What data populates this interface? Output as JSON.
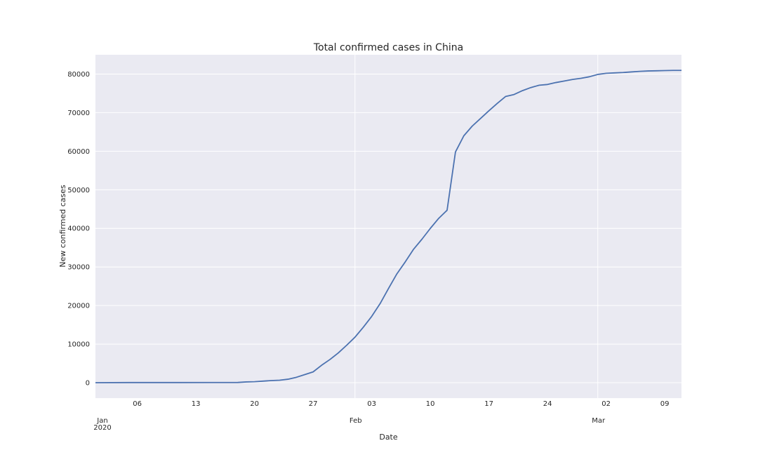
{
  "chart_data": {
    "type": "line",
    "title": "Total confirmed cases in China",
    "xlabel": "Date",
    "ylabel": "New confirmed cases",
    "x_start": "2020-01-01",
    "x_end": "2020-03-11",
    "ylim": [
      -4000,
      85000
    ],
    "grid": true,
    "y_ticks": [
      {
        "value": 0,
        "label": "0"
      },
      {
        "value": 10000,
        "label": "10000"
      },
      {
        "value": 20000,
        "label": "20000"
      },
      {
        "value": 30000,
        "label": "30000"
      },
      {
        "value": 40000,
        "label": "40000"
      },
      {
        "value": 50000,
        "label": "50000"
      },
      {
        "value": 60000,
        "label": "60000"
      },
      {
        "value": 70000,
        "label": "70000"
      },
      {
        "value": 80000,
        "label": "80000"
      }
    ],
    "x_minor_ticks": [
      {
        "date": "2020-01-06",
        "label": "06"
      },
      {
        "date": "2020-01-13",
        "label": "13"
      },
      {
        "date": "2020-01-20",
        "label": "20"
      },
      {
        "date": "2020-01-27",
        "label": "27"
      },
      {
        "date": "2020-02-03",
        "label": "03"
      },
      {
        "date": "2020-02-10",
        "label": "10"
      },
      {
        "date": "2020-02-17",
        "label": "17"
      },
      {
        "date": "2020-02-24",
        "label": "24"
      },
      {
        "date": "2020-03-02",
        "label": "02"
      },
      {
        "date": "2020-03-09",
        "label": "09"
      }
    ],
    "x_major_ticks": [
      {
        "date": "2020-01-01",
        "label": "Jan",
        "sublabel": "2020"
      },
      {
        "date": "2020-02-01",
        "label": "Feb"
      },
      {
        "date": "2020-03-01",
        "label": "Mar"
      }
    ],
    "series": [
      {
        "color": "#4c72b0",
        "points": [
          [
            "2020-01-01",
            0
          ],
          [
            "2020-01-05",
            40
          ],
          [
            "2020-01-10",
            40
          ],
          [
            "2020-01-15",
            45
          ],
          [
            "2020-01-18",
            60
          ],
          [
            "2020-01-19",
            200
          ],
          [
            "2020-01-20",
            250
          ],
          [
            "2020-01-21",
            400
          ],
          [
            "2020-01-22",
            550
          ],
          [
            "2020-01-23",
            640
          ],
          [
            "2020-01-24",
            900
          ],
          [
            "2020-01-25",
            1400
          ],
          [
            "2020-01-26",
            2100
          ],
          [
            "2020-01-27",
            2800
          ],
          [
            "2020-01-28",
            4500
          ],
          [
            "2020-01-29",
            6000
          ],
          [
            "2020-01-30",
            7700
          ],
          [
            "2020-01-31",
            9700
          ],
          [
            "2020-02-01",
            11800
          ],
          [
            "2020-02-02",
            14400
          ],
          [
            "2020-02-03",
            17200
          ],
          [
            "2020-02-04",
            20500
          ],
          [
            "2020-02-05",
            24400
          ],
          [
            "2020-02-06",
            28200
          ],
          [
            "2020-02-07",
            31300
          ],
          [
            "2020-02-08",
            34600
          ],
          [
            "2020-02-09",
            37200
          ],
          [
            "2020-02-10",
            40000
          ],
          [
            "2020-02-11",
            42600
          ],
          [
            "2020-02-12",
            44700
          ],
          [
            "2020-02-13",
            59800
          ],
          [
            "2020-02-14",
            64000
          ],
          [
            "2020-02-15",
            66500
          ],
          [
            "2020-02-16",
            68500
          ],
          [
            "2020-02-17",
            70500
          ],
          [
            "2020-02-18",
            72400
          ],
          [
            "2020-02-19",
            74200
          ],
          [
            "2020-02-20",
            74700
          ],
          [
            "2020-02-21",
            75700
          ],
          [
            "2020-02-22",
            76500
          ],
          [
            "2020-02-23",
            77100
          ],
          [
            "2020-02-24",
            77300
          ],
          [
            "2020-02-25",
            77800
          ],
          [
            "2020-02-26",
            78200
          ],
          [
            "2020-02-27",
            78600
          ],
          [
            "2020-02-28",
            78900
          ],
          [
            "2020-02-29",
            79300
          ],
          [
            "2020-03-01",
            79900
          ],
          [
            "2020-03-02",
            80200
          ],
          [
            "2020-03-03",
            80300
          ],
          [
            "2020-03-04",
            80400
          ],
          [
            "2020-03-05",
            80550
          ],
          [
            "2020-03-06",
            80700
          ],
          [
            "2020-03-07",
            80800
          ],
          [
            "2020-03-08",
            80850
          ],
          [
            "2020-03-09",
            80900
          ],
          [
            "2020-03-10",
            80950
          ],
          [
            "2020-03-11",
            80950
          ]
        ]
      }
    ],
    "colors": {
      "plot_background": "#eaeaf2",
      "grid": "#ffffff",
      "text": "#262626"
    }
  }
}
